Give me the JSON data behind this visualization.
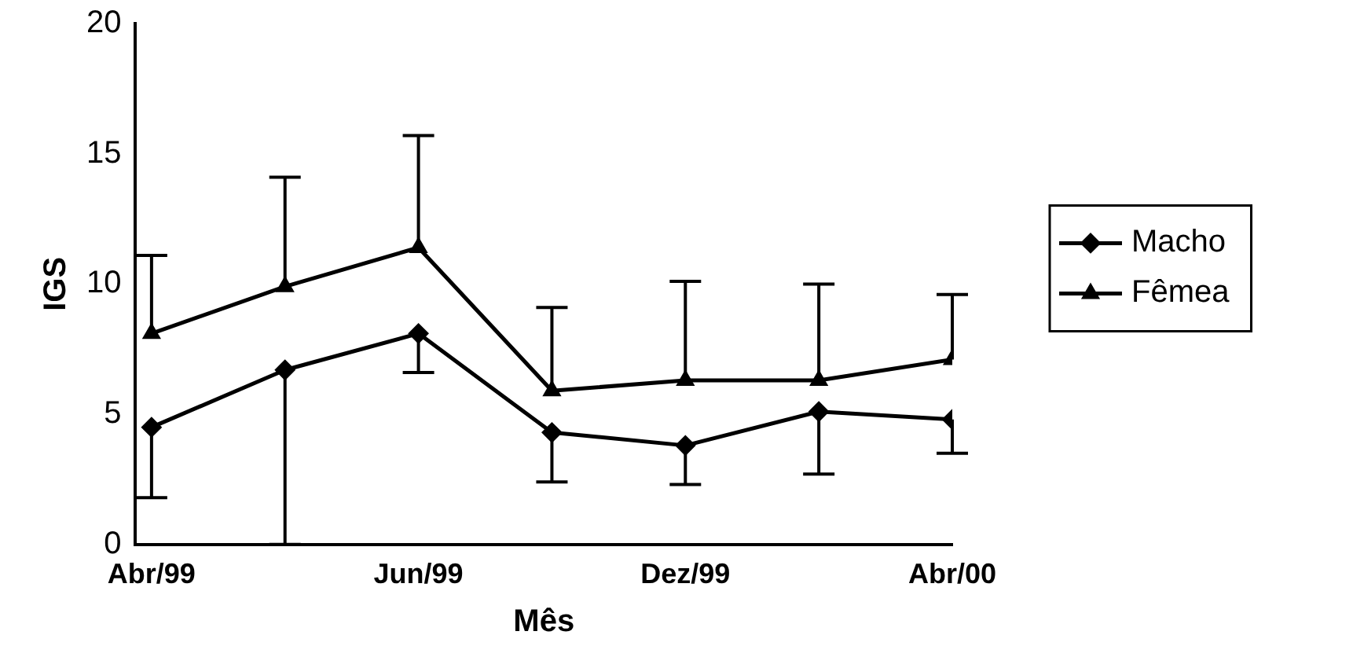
{
  "chart_data": {
    "type": "line",
    "xlabel": "Mês",
    "ylabel": "IGS",
    "categories": [
      "Abr/99",
      null,
      "Jun/99",
      null,
      "Dez/99",
      null,
      "Abr/00"
    ],
    "series": [
      {
        "name": "Macho",
        "color": "#000000",
        "marker": "diamond",
        "values": [
          4.5,
          6.7,
          8.1,
          4.3,
          3.8,
          5.1,
          4.8
        ],
        "errors": [
          [
            1.8,
            4.5
          ],
          [
            0,
            6.7
          ],
          [
            6.6,
            8.1
          ],
          [
            2.4,
            4.3
          ],
          [
            2.3,
            3.8
          ],
          [
            2.7,
            5.1
          ],
          [
            3.5,
            4.8
          ]
        ]
      },
      {
        "name": "Fêmea",
        "color": "#000000",
        "marker": "triangle",
        "values": [
          8.1,
          9.9,
          11.4,
          5.9,
          6.3,
          6.3,
          7.1
        ],
        "errors": [
          [
            8.1,
            11.1
          ],
          [
            9.9,
            14.1
          ],
          [
            11.4,
            15.7
          ],
          [
            5.9,
            9.1
          ],
          [
            6.3,
            10.1
          ],
          [
            6.3,
            10.0
          ],
          [
            7.1,
            9.6
          ]
        ]
      }
    ],
    "ylim": [
      0,
      20
    ],
    "yticks": [
      0,
      5,
      10,
      15,
      20
    ],
    "grid": false,
    "legend": "right",
    "line_style": "solid"
  }
}
